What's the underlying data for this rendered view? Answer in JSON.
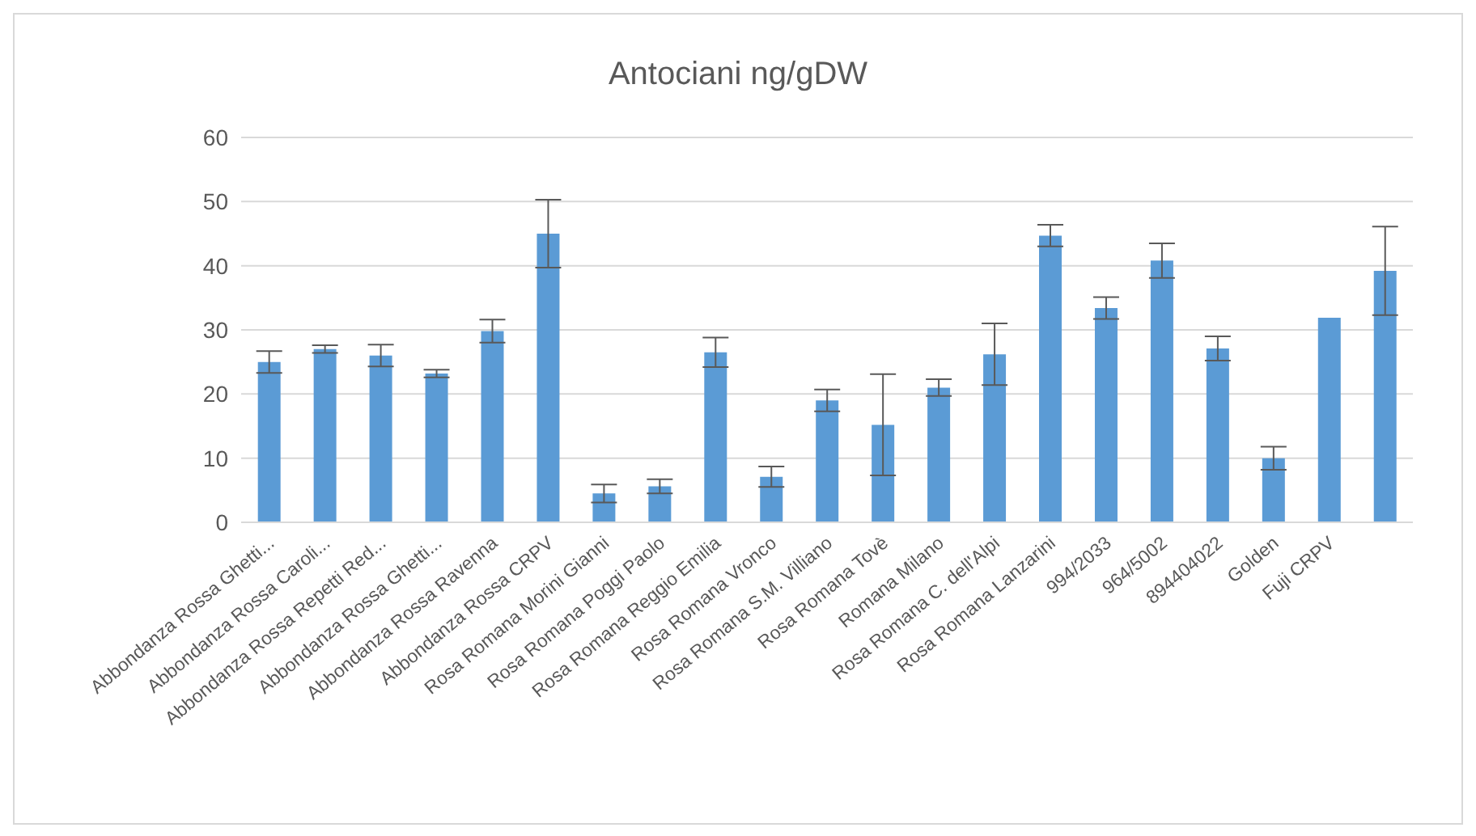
{
  "chart_data": {
    "type": "bar",
    "title": "Antociani ng/gDW",
    "categories": [
      "Abbondanza Rossa Ghetti...",
      "Abbondanza Rossa Caroli...",
      "Abbondanza Rossa Repetti Red...",
      "Abbondanza Rossa Ghetti...",
      "Abbondanza Rossa Ravenna",
      "Abbondanza Rossa CRPV",
      "Rosa Romana Morini Gianni",
      "Rosa Romana Poggi Paolo",
      "Rosa Romana Reggio Emilia",
      "Rosa Romana Vronco",
      "Rosa Romana S.M. Villiano",
      "Rosa Romana Tovè",
      "Romana Milano",
      "Rosa Romana C. dell'Alpi",
      "Rosa Romana Lanzarini",
      "994/2033",
      "964/5002",
      "894404022",
      "Golden",
      "Fuji CRPV",
      null
    ],
    "values": [
      25,
      27,
      26,
      23.2,
      29.8,
      45,
      4.5,
      5.6,
      26.5,
      7.1,
      19,
      15.2,
      21,
      26.2,
      44.7,
      33.4,
      40.8,
      27.1,
      10,
      31.9,
      39.2
    ],
    "errors": [
      1.7,
      0.6,
      1.7,
      0.6,
      1.8,
      5.3,
      1.4,
      1.1,
      2.3,
      1.6,
      1.7,
      7.9,
      1.3,
      4.8,
      1.7,
      1.7,
      2.7,
      1.9,
      1.8,
      null,
      6.9
    ],
    "color": "#5b9bd5",
    "ylim": [
      0,
      60
    ],
    "yticks": [
      0,
      10,
      20,
      30,
      40,
      50,
      60
    ],
    "grid": "y"
  }
}
